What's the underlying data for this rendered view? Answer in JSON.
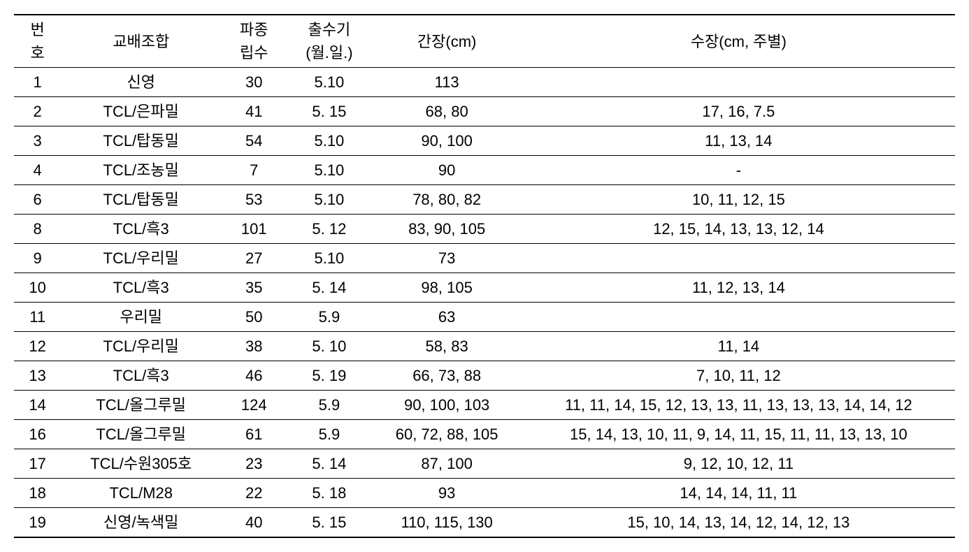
{
  "table": {
    "columns": {
      "no_line1": "번",
      "no_line2": "호",
      "cross": "교배조합",
      "seeds_line1": "파종",
      "seeds_line2": "립수",
      "heading_line1": "출수기",
      "heading_line2": "(월.일.)",
      "culm": "간장(cm)",
      "spike": "수장(cm, 주별)"
    },
    "rows": [
      {
        "no": "1",
        "cross": "신영",
        "seeds": "30",
        "heading": "5.10",
        "culm": "113",
        "spike": ""
      },
      {
        "no": "2",
        "cross": "TCL/은파밀",
        "seeds": "41",
        "heading": "5. 15",
        "culm": "68, 80",
        "spike": "17, 16, 7.5"
      },
      {
        "no": "3",
        "cross": "TCL/탑동밀",
        "seeds": "54",
        "heading": "5.10",
        "culm": "90, 100",
        "spike": "11, 13, 14"
      },
      {
        "no": "4",
        "cross": "TCL/조농밀",
        "seeds": "7",
        "heading": "5.10",
        "culm": "90",
        "spike": "-"
      },
      {
        "no": "6",
        "cross": "TCL/탑동밀",
        "seeds": "53",
        "heading": "5.10",
        "culm": "78, 80, 82",
        "spike": "10, 11, 12, 15"
      },
      {
        "no": "8",
        "cross": "TCL/흑3",
        "seeds": "101",
        "heading": "5. 12",
        "culm": "83, 90, 105",
        "spike": "12, 15, 14, 13, 13, 12, 14"
      },
      {
        "no": "9",
        "cross": "TCL/우리밀",
        "seeds": "27",
        "heading": "5.10",
        "culm": "73",
        "spike": ""
      },
      {
        "no": "10",
        "cross": "TCL/흑3",
        "seeds": "35",
        "heading": "5. 14",
        "culm": "98, 105",
        "spike": "11, 12, 13, 14"
      },
      {
        "no": "11",
        "cross": "우리밀",
        "seeds": "50",
        "heading": "5.9",
        "culm": "63",
        "spike": ""
      },
      {
        "no": "12",
        "cross": "TCL/우리밀",
        "seeds": "38",
        "heading": "5. 10",
        "culm": "58, 83",
        "spike": "11, 14"
      },
      {
        "no": "13",
        "cross": "TCL/흑3",
        "seeds": "46",
        "heading": "5. 19",
        "culm": "66, 73, 88",
        "spike": "7, 10, 11, 12"
      },
      {
        "no": "14",
        "cross": "TCL/올그루밀",
        "seeds": "124",
        "heading": "5.9",
        "culm": "90, 100, 103",
        "spike": "11, 11, 14, 15, 12, 13, 13, 11, 13, 13, 13, 14, 14, 12"
      },
      {
        "no": "16",
        "cross": "TCL/올그루밀",
        "seeds": "61",
        "heading": "5.9",
        "culm": "60, 72, 88, 105",
        "spike": "15, 14, 13, 10, 11, 9, 14, 11, 15, 11, 11, 13, 13, 10"
      },
      {
        "no": "17",
        "cross": "TCL/수원305호",
        "seeds": "23",
        "heading": "5. 14",
        "culm": "87, 100",
        "spike": "9, 12, 10, 12, 11"
      },
      {
        "no": "18",
        "cross": "TCL/M28",
        "seeds": "22",
        "heading": "5. 18",
        "culm": "93",
        "spike": "14, 14, 14, 11, 11"
      },
      {
        "no": "19",
        "cross": "신영/녹색밀",
        "seeds": "40",
        "heading": "5. 15",
        "culm": "110, 115, 130",
        "spike": "15, 10, 14, 13, 14, 12, 14, 12, 13"
      }
    ]
  }
}
